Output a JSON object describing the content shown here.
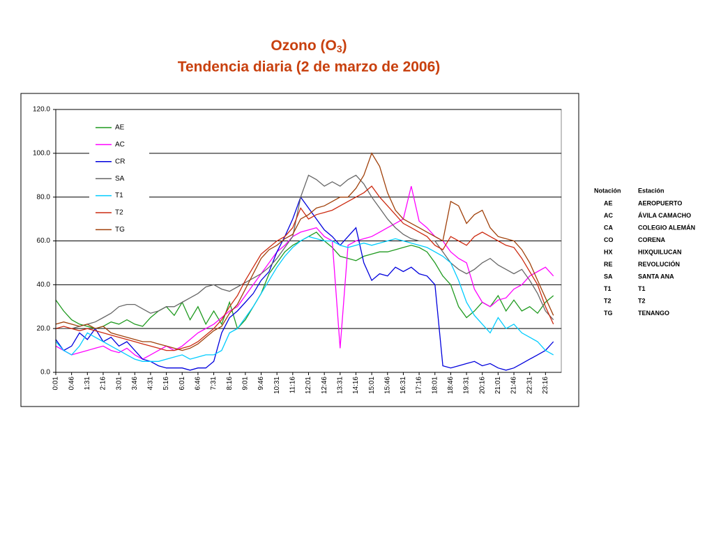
{
  "chart_data": {
    "type": "line",
    "title": {
      "main": "Ozono (O",
      "sub": "3",
      "end": ")"
    },
    "subtitle": "Tendencia diaria (2 de marzo de 2006)",
    "categories": [
      "0:01",
      null,
      "0:46",
      null,
      "1:31",
      null,
      "2:16",
      null,
      "3:01",
      null,
      "3:46",
      null,
      "4:31",
      null,
      "5:16",
      null,
      "6:01",
      null,
      "6:46",
      null,
      "7:31",
      null,
      "8:16",
      null,
      "9:01",
      null,
      "9:46",
      null,
      "10:31",
      null,
      "11:16",
      null,
      "12:01",
      null,
      "12:46",
      null,
      "13:31",
      null,
      "14:16",
      null,
      "15:01",
      null,
      "15:46",
      null,
      "16:31",
      null,
      "17:16",
      null,
      "18:01",
      null,
      "18:46",
      null,
      "19:31",
      null,
      "20:16",
      null,
      "21:01",
      null,
      "21:46",
      null,
      "22:31",
      null,
      "23:16",
      null
    ],
    "ylim": [
      0,
      120
    ],
    "yticks": [
      {
        "value": 0,
        "label": "0.0"
      },
      {
        "value": 20,
        "label": "20.0"
      },
      {
        "value": 40,
        "label": "40.0"
      },
      {
        "value": 60,
        "label": "60.0"
      },
      {
        "value": 80,
        "label": "80.0"
      },
      {
        "value": 100,
        "label": "100.0"
      },
      {
        "value": 120,
        "label": "120.0"
      }
    ],
    "grid": true,
    "legend": "upper left",
    "series": [
      {
        "name": "AE",
        "color": "#1f9a1f",
        "values": [
          33,
          28,
          24,
          22,
          21,
          20,
          21,
          23,
          22,
          24,
          22,
          21,
          25,
          28,
          30,
          26,
          32,
          24,
          30,
          22,
          28,
          22,
          32,
          20,
          24,
          30,
          36,
          45,
          50,
          55,
          58,
          60,
          62,
          64,
          60,
          57,
          53,
          52,
          51,
          53,
          54,
          55,
          55,
          56,
          57,
          58,
          57,
          55,
          50,
          44,
          40,
          30,
          25,
          28,
          32,
          30,
          35,
          28,
          33,
          28,
          30,
          27,
          32,
          35
        ]
      },
      {
        "name": "AC",
        "color": "#ff00ff",
        "values": [
          12,
          10,
          8,
          9,
          10,
          11,
          12,
          10,
          9,
          11,
          8,
          6,
          8,
          10,
          12,
          10,
          12,
          15,
          18,
          20,
          22,
          25,
          28,
          30,
          35,
          40,
          45,
          50,
          55,
          58,
          62,
          64,
          65,
          66,
          62,
          60,
          11,
          58,
          60,
          61,
          62,
          64,
          66,
          68,
          70,
          85,
          69,
          66,
          62,
          60,
          55,
          52,
          50,
          38,
          32,
          30,
          33,
          34,
          38,
          40,
          44,
          46,
          48,
          44
        ]
      },
      {
        "name": "CR",
        "color": "#0000dd",
        "values": [
          15,
          10,
          12,
          18,
          15,
          20,
          14,
          16,
          12,
          14,
          10,
          6,
          5,
          3,
          2,
          2,
          2,
          1,
          2,
          2,
          5,
          18,
          25,
          28,
          32,
          36,
          42,
          46,
          55,
          62,
          70,
          80,
          75,
          70,
          65,
          62,
          58,
          62,
          66,
          50,
          42,
          45,
          44,
          48,
          46,
          48,
          45,
          44,
          40,
          3,
          2,
          3,
          4,
          5,
          3,
          4,
          2,
          1,
          2,
          4,
          6,
          8,
          10,
          14
        ]
      },
      {
        "name": "SA",
        "color": "#666666",
        "values": [
          20,
          20,
          20,
          21,
          22,
          23,
          25,
          27,
          30,
          31,
          31,
          29,
          27,
          28,
          30,
          30,
          32,
          34,
          36,
          39,
          40,
          38,
          37,
          39,
          41,
          43,
          45,
          48,
          52,
          57,
          62,
          80,
          90,
          88,
          85,
          87,
          85,
          88,
          90,
          86,
          80,
          75,
          70,
          66,
          63,
          61,
          60,
          60,
          60,
          55,
          50,
          47,
          45,
          47,
          50,
          52,
          49,
          47,
          45,
          47,
          42,
          36,
          28,
          24
        ]
      },
      {
        "name": "T1",
        "color": "#00ccff",
        "values": [
          14,
          10,
          8,
          12,
          18,
          16,
          14,
          12,
          10,
          8,
          6,
          5,
          5,
          5,
          6,
          7,
          8,
          6,
          7,
          8,
          8,
          10,
          18,
          20,
          25,
          30,
          36,
          42,
          48,
          53,
          57,
          60,
          62,
          61,
          60,
          60,
          58,
          57,
          58,
          59,
          58,
          59,
          60,
          61,
          60,
          59,
          58,
          57,
          55,
          53,
          50,
          42,
          32,
          26,
          22,
          18,
          25,
          20,
          22,
          18,
          16,
          14,
          10,
          8
        ]
      },
      {
        "name": "T2",
        "color": "#cc2a10",
        "values": [
          20,
          21,
          20,
          19,
          20,
          19,
          18,
          17,
          16,
          15,
          14,
          13,
          12,
          11,
          10,
          10,
          11,
          12,
          14,
          17,
          20,
          24,
          30,
          35,
          42,
          48,
          54,
          57,
          60,
          62,
          66,
          75,
          70,
          72,
          73,
          74,
          76,
          78,
          80,
          82,
          85,
          80,
          76,
          72,
          68,
          66,
          64,
          62,
          58,
          56,
          62,
          60,
          58,
          62,
          64,
          62,
          60,
          58,
          57,
          52,
          46,
          40,
          30,
          22
        ]
      },
      {
        "name": "TG",
        "color": "#a0400a",
        "values": [
          22,
          23,
          22,
          21,
          22,
          20,
          21,
          18,
          17,
          16,
          15,
          14,
          14,
          13,
          12,
          11,
          10,
          11,
          13,
          16,
          19,
          21,
          27,
          31,
          38,
          45,
          52,
          56,
          58,
          61,
          63,
          70,
          72,
          75,
          76,
          78,
          80,
          80,
          84,
          90,
          100,
          94,
          82,
          74,
          70,
          68,
          66,
          64,
          62,
          60,
          78,
          76,
          68,
          72,
          74,
          66,
          62,
          61,
          60,
          56,
          50,
          42,
          34,
          26
        ]
      }
    ]
  },
  "station_table": {
    "headers": [
      "Notación",
      "Estación"
    ],
    "rows": [
      [
        "AE",
        "AEROPUERTO"
      ],
      [
        "AC",
        "ÁVILA CAMACHO"
      ],
      [
        "CA",
        "COLEGIO ALEMÁN"
      ],
      [
        "CO",
        "CORENA"
      ],
      [
        "HX",
        "HIXQUILUCAN"
      ],
      [
        "RE",
        "REVOLUCIÓN"
      ],
      [
        "SA",
        "SANTA ANA"
      ],
      [
        "T1",
        "T1"
      ],
      [
        "T2",
        "T2"
      ],
      [
        "TG",
        "TENANGO"
      ]
    ]
  }
}
